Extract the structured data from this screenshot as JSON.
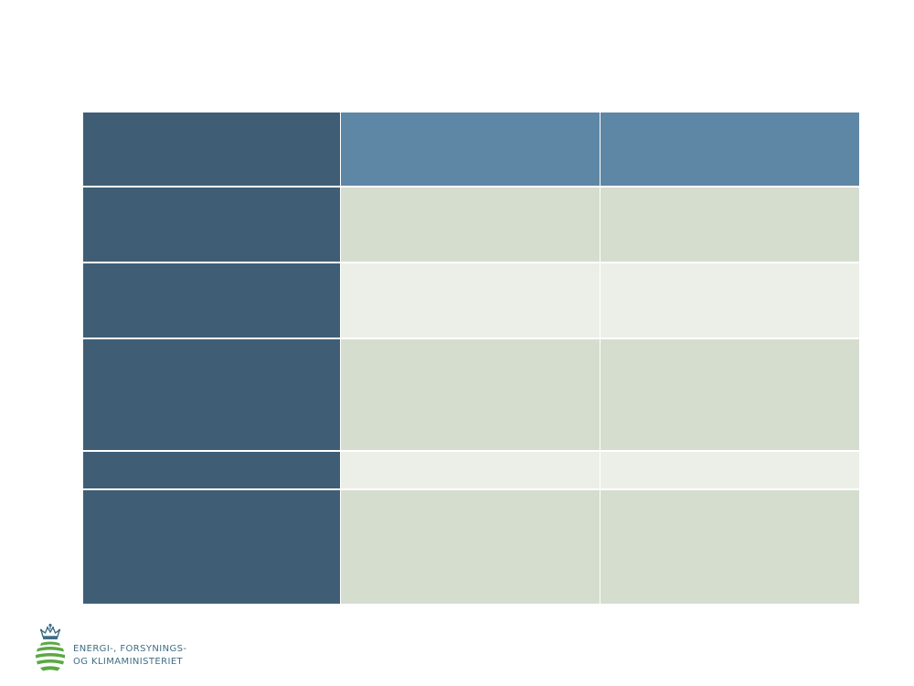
{
  "table": {
    "header": [
      "",
      "",
      ""
    ],
    "rows": [
      [
        "",
        "",
        ""
      ],
      [
        "",
        "",
        ""
      ],
      [
        "",
        "",
        ""
      ],
      [
        "",
        "",
        ""
      ],
      [
        "",
        "",
        ""
      ]
    ]
  },
  "logo": {
    "line1": "ENERGI-, FORSYNINGS-",
    "line2": "OG KLIMAMINISTERIET"
  },
  "colors": {
    "label_column": "#3f5e75",
    "header": "#5e86a5",
    "row_dark": "#d5ddce",
    "row_light": "#ebefe8",
    "brand_text": "#3e6e82",
    "brand_green": "#5aa844"
  }
}
